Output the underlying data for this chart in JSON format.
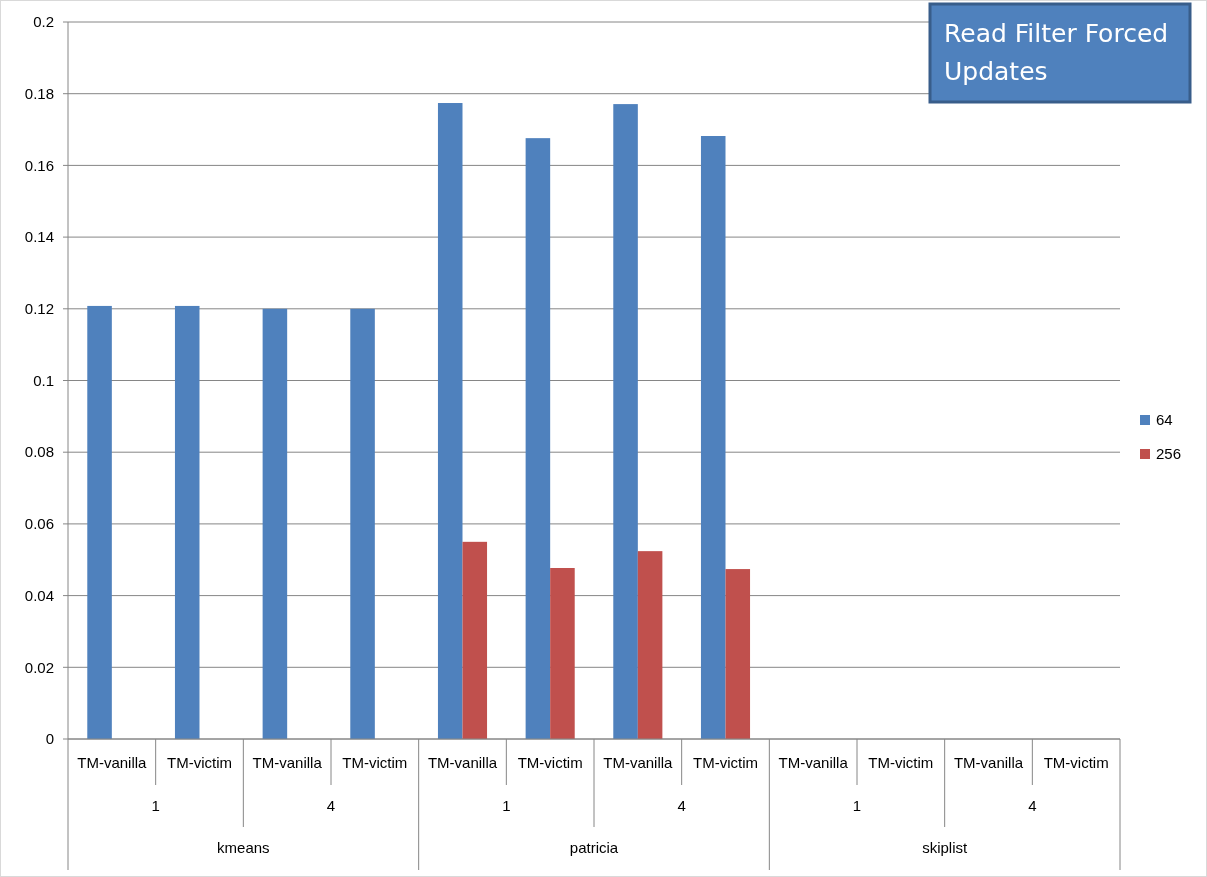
{
  "chart_data": {
    "type": "bar",
    "title": "Read Filter Forced Updates",
    "categories": [
      "TM-vanilla",
      "TM-victim",
      "TM-vanilla",
      "TM-victim",
      "TM-vanilla",
      "TM-victim",
      "TM-vanilla",
      "TM-victim",
      "TM-vanilla",
      "TM-victim",
      "TM-vanilla",
      "TM-victim"
    ],
    "series": [
      {
        "name": "64",
        "color": "#4f81bd",
        "values": [
          0.1208,
          0.1208,
          0.12,
          0.12,
          0.1774,
          0.1676,
          0.1771,
          0.1682,
          0,
          0,
          0,
          0
        ]
      },
      {
        "name": "256",
        "color": "#c0504d",
        "values": [
          0,
          0,
          0,
          0,
          0.055,
          0.0477,
          0.0524,
          0.0474,
          0,
          0,
          0,
          0
        ]
      }
    ],
    "annotations": [
      "1",
      "4",
      "1",
      "4",
      "1",
      "4",
      "kmeans",
      "patricia",
      "skiplist"
    ],
    "ylim": [
      0,
      0.2
    ],
    "yticks": [
      0,
      0.02,
      0.04,
      0.06,
      0.08,
      0.1,
      0.12,
      0.14,
      0.16,
      0.18,
      0.2
    ],
    "grid": "y",
    "legend": "right"
  }
}
